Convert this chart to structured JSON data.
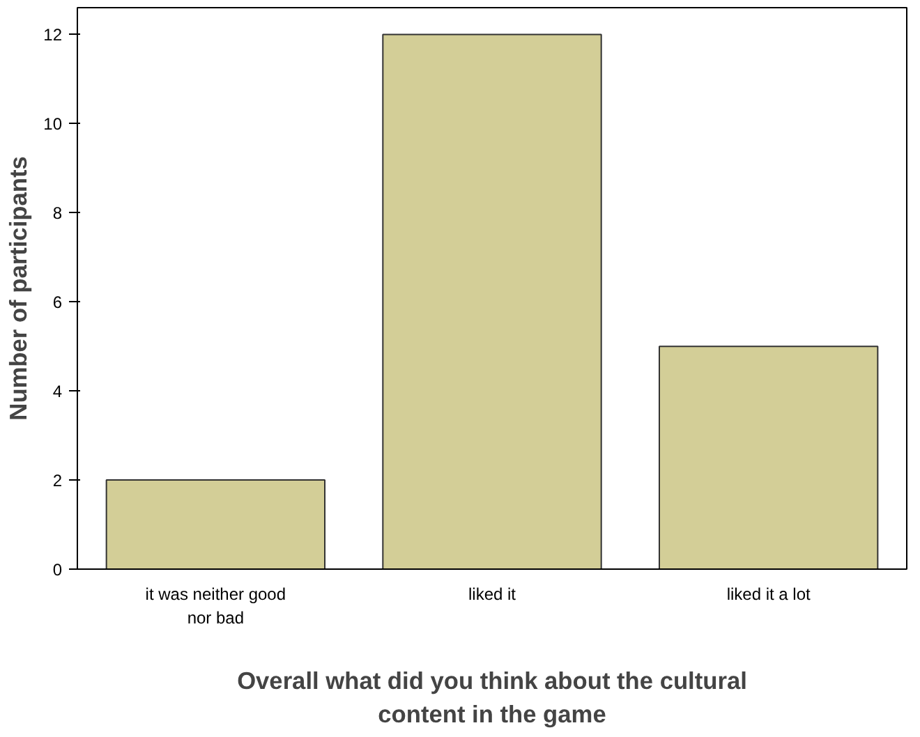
{
  "chart_data": {
    "type": "bar",
    "xlabel": "Overall what did you think about the cultural content in the game",
    "ylabel": "Number of participants",
    "categories": [
      "it was neither good nor bad",
      "liked it",
      "liked it a lot"
    ],
    "values": [
      2,
      12,
      5
    ],
    "color": "#d3ce97",
    "ylim": [
      0,
      12.6
    ],
    "yticks": [
      0,
      2,
      4,
      6,
      8,
      10,
      12
    ],
    "grid": false
  }
}
